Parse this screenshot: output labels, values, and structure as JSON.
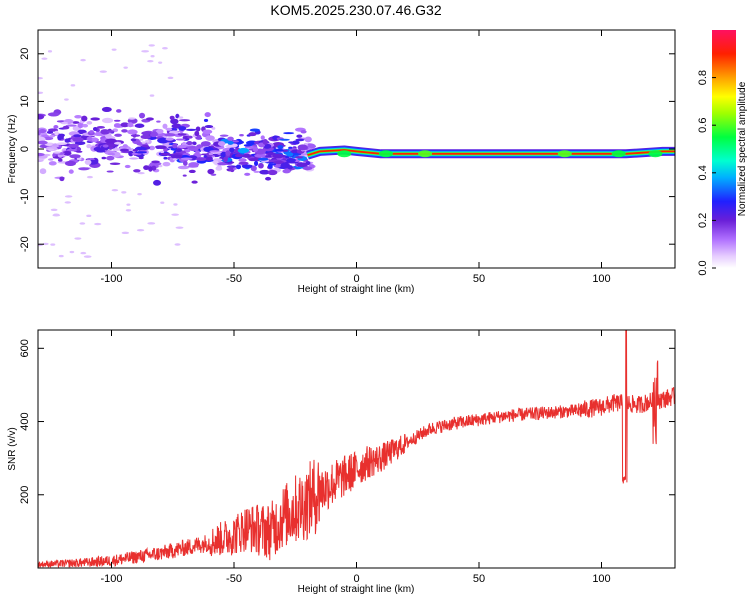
{
  "title": "KOM5.2025.230.07.46.G32",
  "chart_data": [
    {
      "type": "heatmap",
      "name": "spectrogram",
      "xlabel": "Height of straight line (km)",
      "ylabel": "Frequency (Hz)",
      "xlim": [
        -130,
        130
      ],
      "ylim": [
        -25,
        25
      ],
      "xticks": [
        -100,
        -50,
        0,
        50,
        100
      ],
      "xtick_labels": [
        "-100",
        "-50",
        "0",
        "50",
        "100"
      ],
      "yticks": [
        -20,
        -10,
        0,
        10,
        20
      ],
      "ytick_labels": [
        "-20",
        "-10",
        "0",
        "10",
        "20"
      ],
      "colorbar": {
        "label": "Normalized spectral amplitude",
        "range": [
          0,
          1
        ],
        "ticks": [
          0.0,
          0.2,
          0.4,
          0.6,
          0.8
        ],
        "tick_labels": [
          "0.0",
          "0.2",
          "0.4",
          "0.6",
          "0.8"
        ]
      },
      "ridge": {
        "description": "stable frequency line after ~-20 km",
        "points": [
          [
            -20,
            -1.3
          ],
          [
            -15,
            -0.5
          ],
          [
            -5,
            -0.2
          ],
          [
            0,
            -0.5
          ],
          [
            10,
            -1.0
          ],
          [
            30,
            -1.0
          ],
          [
            60,
            -1.0
          ],
          [
            90,
            -1.0
          ],
          [
            110,
            -1.0
          ],
          [
            125,
            -0.5
          ],
          [
            130,
            -0.5
          ]
        ]
      }
    },
    {
      "type": "line",
      "name": "snr",
      "xlabel": "Height of straight line (km)",
      "ylabel": "SNR (v/v)",
      "xlim": [
        -130,
        130
      ],
      "ylim": [
        0,
        650
      ],
      "xticks": [
        -100,
        -50,
        0,
        50,
        100
      ],
      "xtick_labels": [
        "-100",
        "-50",
        "0",
        "50",
        "100"
      ],
      "yticks": [
        200,
        400,
        600
      ],
      "ytick_labels": [
        "200",
        "400",
        "600"
      ],
      "color": "#e8302e",
      "x": [
        -130,
        -120,
        -110,
        -100,
        -90,
        -80,
        -70,
        -60,
        -50,
        -45,
        -40,
        -35,
        -30,
        -25,
        -20,
        -15,
        -10,
        -5,
        0,
        5,
        10,
        15,
        20,
        25,
        30,
        40,
        50,
        60,
        70,
        80,
        90,
        95,
        100,
        105,
        110,
        115,
        120,
        125,
        130
      ],
      "y": [
        10,
        12,
        15,
        20,
        30,
        40,
        55,
        70,
        90,
        110,
        105,
        100,
        140,
        160,
        180,
        210,
        230,
        250,
        270,
        290,
        300,
        320,
        340,
        360,
        380,
        395,
        405,
        415,
        420,
        425,
        430,
        435,
        440,
        450,
        450,
        445,
        455,
        460,
        470
      ]
    }
  ]
}
